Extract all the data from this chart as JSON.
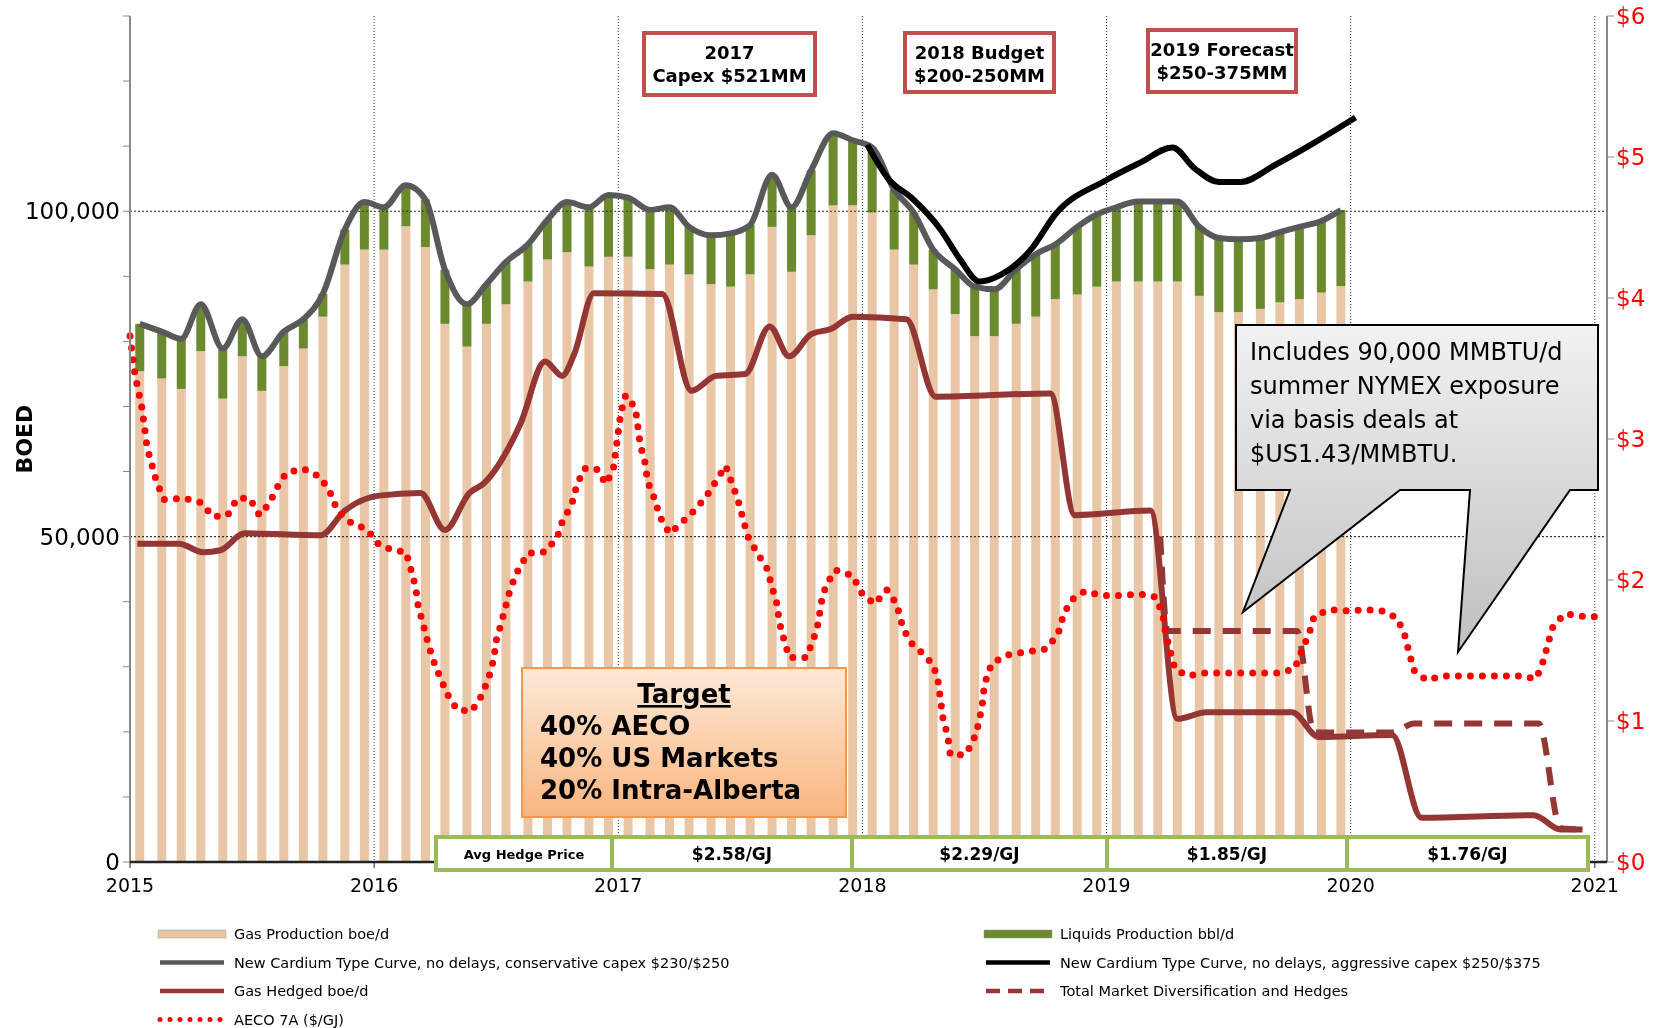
{
  "chart_data": {
    "type": "bar",
    "stacked": true,
    "ylabel": "BOED",
    "legend": "bottom",
    "grid": true,
    "xlim": [
      2015,
      2021.05
    ],
    "xticks": [
      2015,
      2016,
      2017,
      2018,
      2019,
      2020,
      2021
    ],
    "ylim": [
      0,
      130000
    ],
    "yticks": [
      {
        "value": 0,
        "label": "0"
      },
      {
        "value": 10000,
        "label": null
      },
      {
        "value": 20000,
        "label": null
      },
      {
        "value": 30000,
        "label": null
      },
      {
        "value": 40000,
        "label": null
      },
      {
        "value": 50000,
        "label": "50,000"
      },
      {
        "value": 60000,
        "label": null
      },
      {
        "value": 70000,
        "label": null
      },
      {
        "value": 80000,
        "label": null
      },
      {
        "value": 90000,
        "label": null
      },
      {
        "value": 100000,
        "label": "100,000"
      },
      {
        "value": 110000,
        "label": null
      },
      {
        "value": 120000,
        "label": null
      },
      {
        "value": 130000,
        "label": null
      }
    ],
    "y2lim": [
      0,
      6
    ],
    "y2ticks": [
      {
        "value": 0,
        "label": "$0"
      },
      {
        "value": 1,
        "label": "$1"
      },
      {
        "value": 2,
        "label": "$2"
      },
      {
        "value": 3,
        "label": "$3"
      },
      {
        "value": 4,
        "label": "$4"
      },
      {
        "value": 5,
        "label": "$5"
      },
      {
        "value": 6,
        "label": "$6"
      }
    ],
    "x": [
      2015.04,
      2015.13,
      2015.21,
      2015.29,
      2015.38,
      2015.46,
      2015.54,
      2015.63,
      2015.71,
      2015.79,
      2015.88,
      2015.96,
      2016.04,
      2016.13,
      2016.21,
      2016.29,
      2016.38,
      2016.46,
      2016.54,
      2016.63,
      2016.71,
      2016.79,
      2016.88,
      2016.96,
      2017.04,
      2017.13,
      2017.21,
      2017.29,
      2017.38,
      2017.46,
      2017.54,
      2017.63,
      2017.71,
      2017.79,
      2017.88,
      2017.96,
      2018.04,
      2018.13,
      2018.21,
      2018.29,
      2018.38,
      2018.46,
      2018.54,
      2018.63,
      2018.71,
      2018.79,
      2018.88,
      2018.96,
      2019.04,
      2019.13,
      2019.21,
      2019.29,
      2019.38,
      2019.46,
      2019.54,
      2019.63,
      2019.71,
      2019.79,
      2019.88,
      2019.96
    ],
    "series": [
      {
        "name": "Gas Production boe/d",
        "color": "#e8c6a6",
        "values": [
          75400,
          74300,
          72700,
          78500,
          71200,
          77700,
          72400,
          76200,
          78900,
          83800,
          91800,
          94100,
          94100,
          97700,
          94500,
          82700,
          79200,
          82700,
          85700,
          89200,
          92600,
          93700,
          91500,
          93000,
          93000,
          91100,
          91800,
          90300,
          88800,
          88400,
          90300,
          97600,
          90700,
          96300,
          100900,
          100900,
          99800,
          94100,
          91800,
          88000,
          84200,
          80800,
          80800,
          82700,
          83800,
          86500,
          87200,
          88400,
          89200,
          89200,
          89200,
          89200,
          87000,
          84500,
          84500,
          85000,
          86000,
          86500,
          87500,
          88500
        ]
      },
      {
        "name": "Liquids Production bbl/d",
        "color": "#6b8a2e",
        "values": [
          7300,
          7200,
          7700,
          7200,
          7700,
          5700,
          5300,
          5300,
          4500,
          3500,
          5400,
          7300,
          6500,
          6300,
          7300,
          8300,
          6500,
          6100,
          6500,
          5700,
          6100,
          7700,
          9100,
          9500,
          9100,
          9100,
          8800,
          7300,
          7500,
          8200,
          7600,
          8000,
          9900,
          10000,
          11100,
          10000,
          10000,
          9200,
          8000,
          6100,
          6900,
          7600,
          7200,
          8400,
          9600,
          8400,
          10400,
          11100,
          11400,
          12300,
          12300,
          12300,
          10600,
          11400,
          11200,
          10900,
          10800,
          11100,
          11000,
          11700
        ]
      },
      {
        "name": "New Cardium Type Curve, no delays, conservative capex $230/$250",
        "type": "line",
        "color": "#595959",
        "values": [
          82700,
          81500,
          80400,
          85700,
          78900,
          83400,
          77700,
          81500,
          83400,
          87300,
          97200,
          101400,
          100600,
          104000,
          101800,
          91000,
          85700,
          88800,
          92200,
          94900,
          98700,
          101400,
          100600,
          102500,
          102100,
          100200,
          100600,
          97600,
          96300,
          96600,
          97900,
          105600,
          100600,
          106300,
          112000,
          110900,
          109800,
          103300,
          99800,
          94100,
          91100,
          88400,
          88000,
          91100,
          93400,
          94900,
          97600,
          99500,
          100600,
          101500,
          101500,
          101500,
          97600,
          95900,
          95700,
          95900,
          96800,
          97600,
          98500,
          100200
        ]
      },
      {
        "name": "New Cardium Type Curve, no delays, aggressive capex $250/$375",
        "type": "line",
        "color": "#000000",
        "x": [
          2018.02,
          2018.11,
          2018.2,
          2018.32,
          2018.4,
          2018.48,
          2018.57,
          2018.69,
          2018.79,
          2019.0,
          2019.14,
          2019.27,
          2019.36,
          2019.46,
          2019.55,
          2019.69,
          2019.85,
          2020.02
        ],
        "values": [
          110200,
          104800,
          102100,
          97200,
          92600,
          89200,
          90300,
          94100,
          99500,
          104800,
          107500,
          109800,
          106600,
          104500,
          104500,
          107100,
          110500,
          114400
        ]
      },
      {
        "name": "Gas Hedged boe/d",
        "type": "line",
        "color": "#943634",
        "x": [
          2015.03,
          2015.2,
          2015.3,
          2015.37,
          2015.47,
          2015.78,
          2015.88,
          2016.02,
          2016.19,
          2016.29,
          2016.39,
          2016.45,
          2016.6,
          2016.7,
          2016.77,
          2016.82,
          2016.9,
          2017.18,
          2017.3,
          2017.4,
          2017.52,
          2017.62,
          2017.7,
          2017.79,
          2017.87,
          2017.96,
          2018.18,
          2018.3,
          2018.77,
          2018.87,
          2019.18,
          2019.29,
          2019.41,
          2019.76,
          2019.87,
          2020.17,
          2020.29,
          2020.75,
          2020.86,
          2020.95
        ],
        "values": [
          48900,
          48900,
          47600,
          47900,
          50500,
          50200,
          54000,
          56300,
          56700,
          51000,
          56700,
          58200,
          67400,
          76900,
          74700,
          78100,
          87400,
          87300,
          72400,
          74700,
          75000,
          82300,
          77700,
          81100,
          81900,
          83800,
          83400,
          71500,
          72000,
          53300,
          54000,
          22000,
          23000,
          23000,
          19200,
          19500,
          6800,
          7200,
          5000,
          5000
        ]
      },
      {
        "name": "Total Market Diversification and Hedges",
        "type": "line",
        "line_style": "dashed",
        "color": "#943634",
        "x": [
          2019.22,
          2019.25,
          2019.78,
          2019.85,
          2020.17,
          2020.26,
          2020.77,
          2020.86,
          2020.95
        ],
        "values": [
          50000,
          35500,
          35500,
          19900,
          19900,
          21300,
          21300,
          5200,
          5000
        ]
      },
      {
        "name": "AECO 7A ($/GJ)",
        "type": "line",
        "line_style": "dotted",
        "axis": "y2",
        "color": "#ff0000",
        "x": [
          2015.0,
          2015.02,
          2015.05,
          2015.07,
          2015.11,
          2015.14,
          2015.22,
          2015.29,
          2015.34,
          2015.4,
          2015.44,
          2015.49,
          2015.53,
          2015.57,
          2015.6,
          2015.64,
          2015.71,
          2015.78,
          2015.82,
          2015.85,
          2015.91,
          2015.97,
          2016.02,
          2016.08,
          2016.13,
          2016.15,
          2016.17,
          2016.18,
          2016.2,
          2016.22,
          2016.24,
          2016.27,
          2016.3,
          2016.34,
          2016.4,
          2016.44,
          2016.47,
          2016.49,
          2016.5,
          2016.52,
          2016.54,
          2016.56,
          2016.59,
          2016.63,
          2016.7,
          2016.75,
          2016.77,
          2016.81,
          2016.83,
          2016.86,
          2016.91,
          2016.95,
          2016.98,
          2016.99,
          2017.0,
          2017.01,
          2017.03,
          2017.07,
          2017.08,
          2017.09,
          2017.11,
          2017.12,
          2017.15,
          2017.17,
          2017.21,
          2017.25,
          2017.31,
          2017.36,
          2017.4,
          2017.44,
          2017.49,
          2017.51,
          2017.53,
          2017.57,
          2017.61,
          2017.63,
          2017.65,
          2017.66,
          2017.68,
          2017.7,
          2017.77,
          2017.8,
          2017.82,
          2017.83,
          2017.85,
          2017.89,
          2017.96,
          2018.0,
          2018.05,
          2018.1,
          2018.14,
          2018.16,
          2018.19,
          2018.24,
          2018.29,
          2018.31,
          2018.32,
          2018.33,
          2018.35,
          2018.36,
          2018.42,
          2018.45,
          2018.47,
          2018.49,
          2018.5,
          2018.53,
          2018.6,
          2018.67,
          2018.75,
          2018.8,
          2018.82,
          2018.85,
          2018.91,
          2018.98,
          2019.06,
          2019.14,
          2019.2,
          2019.23,
          2019.24,
          2019.26,
          2019.28,
          2019.33,
          2019.4,
          2019.48,
          2019.55,
          2019.63,
          2019.71,
          2019.77,
          2019.8,
          2019.83,
          2019.85,
          2019.91,
          2019.99,
          2020.06,
          2020.13,
          2020.19,
          2020.22,
          2020.24,
          2020.26,
          2020.31,
          2020.38,
          2020.46,
          2020.54,
          2020.61,
          2020.69,
          2020.76,
          2020.79,
          2020.81,
          2020.83,
          2020.88,
          2020.96,
          2021.0
        ],
        "values": [
          3.73,
          3.46,
          3.21,
          2.94,
          2.69,
          2.57,
          2.58,
          2.55,
          2.45,
          2.46,
          2.58,
          2.58,
          2.46,
          2.54,
          2.65,
          2.76,
          2.79,
          2.73,
          2.62,
          2.49,
          2.4,
          2.36,
          2.25,
          2.21,
          2.2,
          2.08,
          1.95,
          1.82,
          1.69,
          1.56,
          1.44,
          1.31,
          1.19,
          1.08,
          1.07,
          1.18,
          1.31,
          1.44,
          1.57,
          1.69,
          1.82,
          1.95,
          2.07,
          2.19,
          2.2,
          2.3,
          2.41,
          2.54,
          2.67,
          2.79,
          2.79,
          2.68,
          2.79,
          2.92,
          3.05,
          3.18,
          3.31,
          3.22,
          3.09,
          2.96,
          2.83,
          2.7,
          2.57,
          2.45,
          2.33,
          2.39,
          2.49,
          2.59,
          2.7,
          2.81,
          2.57,
          2.44,
          2.31,
          2.19,
          2.08,
          1.95,
          1.83,
          1.7,
          1.57,
          1.45,
          1.45,
          1.58,
          1.7,
          1.83,
          1.96,
          2.07,
          2.03,
          1.9,
          1.83,
          1.93,
          1.83,
          1.7,
          1.57,
          1.49,
          1.4,
          1.28,
          1.15,
          1.02,
          0.89,
          0.76,
          0.76,
          0.84,
          0.94,
          1.1,
          1.26,
          1.41,
          1.47,
          1.49,
          1.51,
          1.61,
          1.73,
          1.85,
          1.92,
          1.89,
          1.89,
          1.9,
          1.88,
          1.76,
          1.64,
          1.5,
          1.37,
          1.32,
          1.34,
          1.34,
          1.34,
          1.34,
          1.34,
          1.37,
          1.5,
          1.62,
          1.74,
          1.79,
          1.78,
          1.79,
          1.78,
          1.73,
          1.62,
          1.48,
          1.36,
          1.29,
          1.32,
          1.32,
          1.32,
          1.32,
          1.32,
          1.3,
          1.43,
          1.56,
          1.68,
          1.76,
          1.74,
          1.74
        ]
      }
    ],
    "annotations": [
      "2017\nCapex $521MM",
      "2018 Budget\n$200-250MM",
      "2019 Forecast\n$250-375MM",
      "Includes 90,000 MMBTU/d\nsummer NYMEX exposure\nvia basis deals at\n$US1.43/MMBTU.",
      "Target\n40% AECO\n40% US Markets\n20% Intra-Alberta",
      "Avg Hedge Price",
      "$2.58/GJ",
      "$2.29/GJ",
      "$1.85/GJ",
      "$1.76/GJ"
    ]
  }
}
